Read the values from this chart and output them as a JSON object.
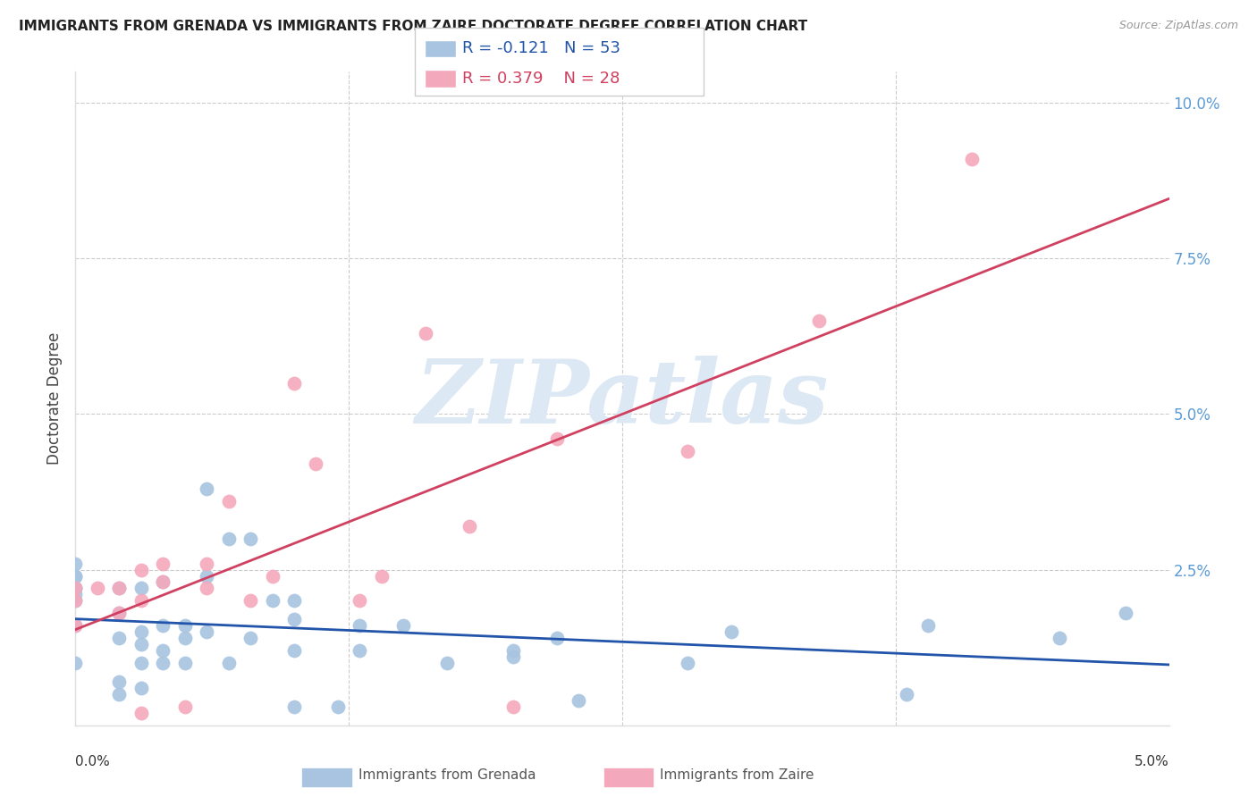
{
  "title": "IMMIGRANTS FROM GRENADA VS IMMIGRANTS FROM ZAIRE DOCTORATE DEGREE CORRELATION CHART",
  "source": "Source: ZipAtlas.com",
  "ylabel": "Doctorate Degree",
  "yticks": [
    0.0,
    0.025,
    0.05,
    0.075,
    0.1
  ],
  "ytick_labels": [
    "",
    "2.5%",
    "5.0%",
    "7.5%",
    "10.0%"
  ],
  "xlim": [
    0.0,
    0.05
  ],
  "ylim": [
    0.0,
    0.105
  ],
  "grenada_R": -0.121,
  "grenada_N": 53,
  "zaire_R": 0.379,
  "zaire_N": 28,
  "grenada_color": "#a8c4e0",
  "zaire_color": "#f4a8bc",
  "grenada_line_color": "#2255aa",
  "zaire_line_color": "#d04060",
  "background_color": "#ffffff",
  "tick_color": "#5b9bd5",
  "grenada_x": [
    0.0,
    0.0,
    0.0,
    0.0,
    0.0,
    0.0,
    0.0,
    0.0,
    0.0,
    0.002,
    0.002,
    0.002,
    0.002,
    0.002,
    0.003,
    0.003,
    0.003,
    0.003,
    0.003,
    0.004,
    0.004,
    0.004,
    0.004,
    0.005,
    0.005,
    0.005,
    0.006,
    0.006,
    0.006,
    0.007,
    0.007,
    0.008,
    0.008,
    0.009,
    0.01,
    0.01,
    0.01,
    0.01,
    0.012,
    0.013,
    0.013,
    0.015,
    0.017,
    0.02,
    0.02,
    0.022,
    0.023,
    0.028,
    0.03,
    0.038,
    0.039,
    0.045,
    0.048
  ],
  "grenada_y": [
    0.01,
    0.016,
    0.02,
    0.021,
    0.022,
    0.022,
    0.024,
    0.024,
    0.026,
    0.005,
    0.007,
    0.014,
    0.018,
    0.022,
    0.006,
    0.01,
    0.013,
    0.015,
    0.022,
    0.01,
    0.012,
    0.016,
    0.023,
    0.01,
    0.014,
    0.016,
    0.015,
    0.024,
    0.038,
    0.01,
    0.03,
    0.014,
    0.03,
    0.02,
    0.003,
    0.012,
    0.017,
    0.02,
    0.003,
    0.012,
    0.016,
    0.016,
    0.01,
    0.011,
    0.012,
    0.014,
    0.004,
    0.01,
    0.015,
    0.005,
    0.016,
    0.014,
    0.018
  ],
  "zaire_x": [
    0.0,
    0.0,
    0.0,
    0.001,
    0.002,
    0.002,
    0.003,
    0.003,
    0.003,
    0.004,
    0.004,
    0.005,
    0.006,
    0.006,
    0.007,
    0.008,
    0.009,
    0.01,
    0.011,
    0.013,
    0.014,
    0.016,
    0.018,
    0.02,
    0.022,
    0.028,
    0.034,
    0.041
  ],
  "zaire_y": [
    0.016,
    0.02,
    0.022,
    0.022,
    0.018,
    0.022,
    0.002,
    0.02,
    0.025,
    0.023,
    0.026,
    0.003,
    0.022,
    0.026,
    0.036,
    0.02,
    0.024,
    0.055,
    0.042,
    0.02,
    0.024,
    0.063,
    0.032,
    0.003,
    0.046,
    0.044,
    0.065,
    0.091
  ]
}
